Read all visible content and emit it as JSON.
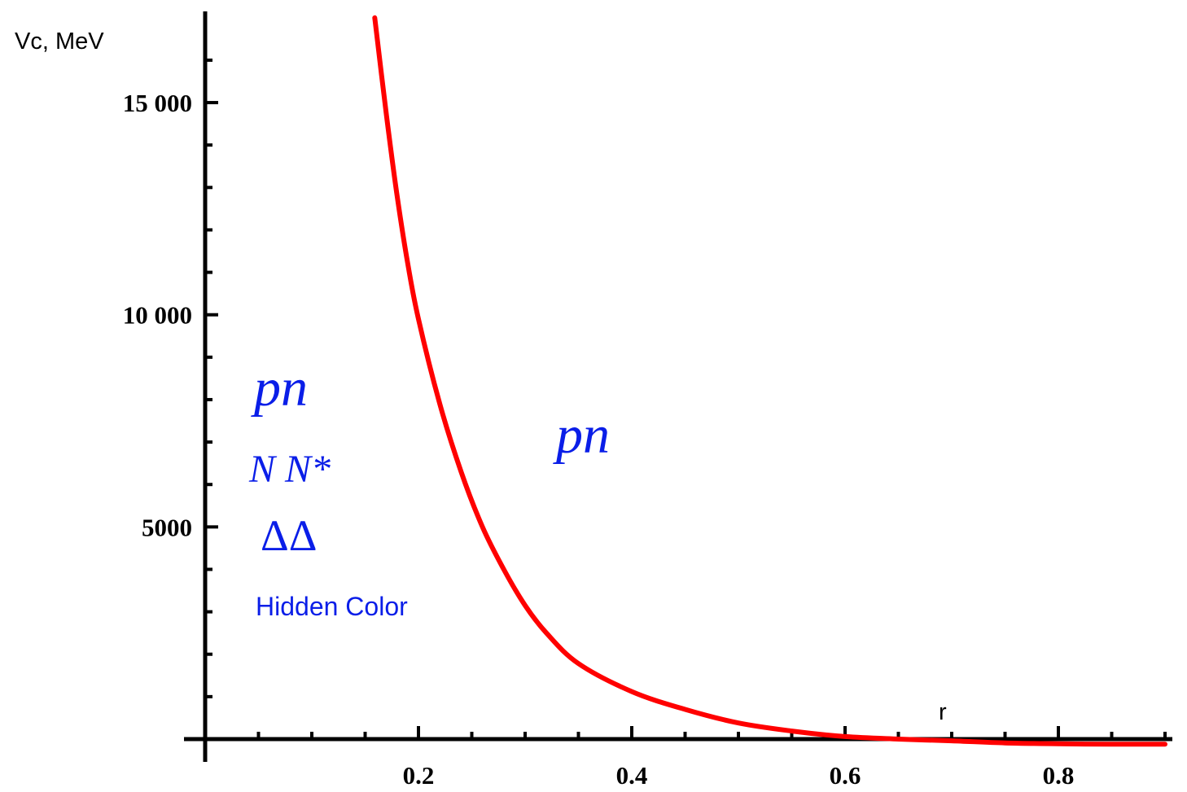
{
  "chart_data": {
    "type": "line",
    "title": "",
    "xlabel": "r",
    "ylabel": "Vc, MeV",
    "xlim": [
      0,
      0.9
    ],
    "ylim": [
      -400,
      17000
    ],
    "x_ticks": [
      {
        "value": 0.2,
        "label": "0.2"
      },
      {
        "value": 0.4,
        "label": "0.4"
      },
      {
        "value": 0.6,
        "label": "0.6"
      },
      {
        "value": 0.8,
        "label": "0.8"
      }
    ],
    "y_ticks": [
      {
        "value": 5000,
        "label": "5000"
      },
      {
        "value": 10000,
        "label": "10 000"
      },
      {
        "value": 15000,
        "label": "15 000"
      }
    ],
    "grid": false,
    "legend": "none",
    "series": [
      {
        "color": "#ff0000",
        "x": [
          0.159,
          0.17,
          0.18,
          0.19,
          0.2,
          0.22,
          0.24,
          0.26,
          0.28,
          0.3,
          0.32,
          0.35,
          0.4,
          0.45,
          0.5,
          0.55,
          0.6,
          0.65,
          0.7,
          0.75,
          0.8,
          0.85,
          0.9
        ],
        "y": [
          17000,
          14700,
          12800,
          11200,
          9900,
          7900,
          6300,
          5000,
          4000,
          3150,
          2500,
          1780,
          1120,
          700,
          380,
          190,
          60,
          0,
          -40,
          -90,
          -110,
          -120,
          -120
        ]
      }
    ],
    "annotations": [
      {
        "id": "left-pn",
        "text": "pn"
      },
      {
        "id": "left-nnstar",
        "text": "N N*"
      },
      {
        "id": "left-deltadelta",
        "text": "ΔΔ"
      },
      {
        "id": "left-hidden-color",
        "text": "Hidden Color"
      },
      {
        "id": "right-pn",
        "text": "pn"
      }
    ]
  }
}
